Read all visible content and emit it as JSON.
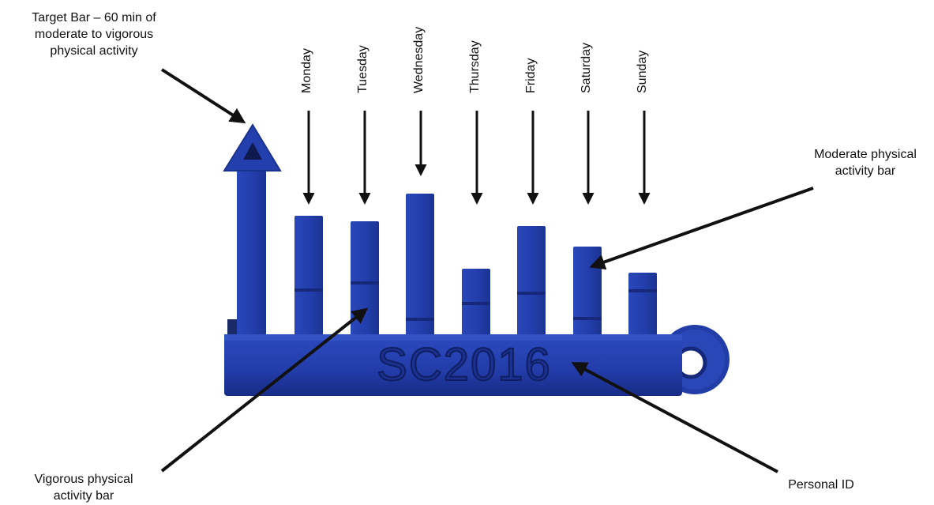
{
  "annotations": {
    "target_bar": [
      "Target Bar – 60 min of",
      "moderate to vigorous",
      "physical activity"
    ],
    "moderate_bar": [
      "Moderate physical",
      "activity bar"
    ],
    "vigorous_bar": [
      "Vigorous physical",
      "activity bar"
    ],
    "personal_id": "Personal ID"
  },
  "days": [
    "Monday",
    "Tuesday",
    "Wednesday",
    "Thursday",
    "Friday",
    "Saturday",
    "Sunday"
  ],
  "engraved_id": "SC2016",
  "colors": {
    "plastic": "#233fae",
    "plastic_dark": "#16287a",
    "plastic_light": "#3a58c9",
    "arrow": "#111111"
  }
}
